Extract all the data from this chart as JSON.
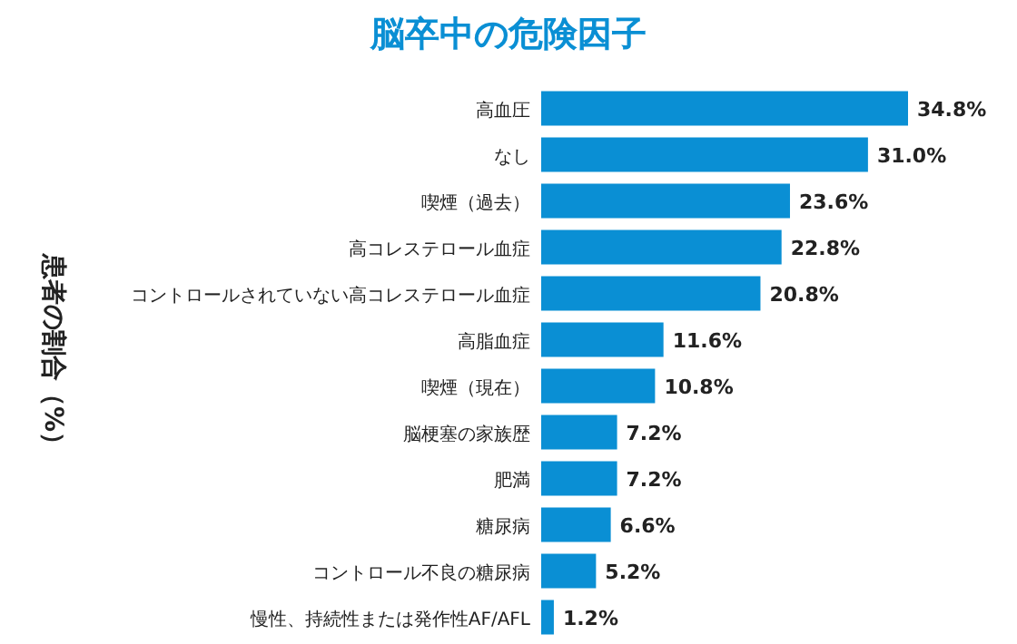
{
  "chart_data": {
    "type": "bar",
    "orientation": "horizontal",
    "title": "脳卒中の危険因子",
    "ylabel": "患者の割合（%）",
    "categories": [
      "高血圧",
      "なし",
      "喫煙（過去）",
      "高コレステロール血症",
      "コントロールされていない高コレステロール血症",
      "高脂血症",
      "喫煙（現在）",
      "脳梗塞の家族歴",
      "肥満",
      "糖尿病",
      "コントロール不良の糖尿病",
      "慢性、持続性または発作性AF/AFL"
    ],
    "values": [
      34.8,
      31.0,
      23.6,
      22.8,
      20.8,
      11.6,
      10.8,
      7.2,
      7.2,
      6.6,
      5.2,
      1.2
    ],
    "value_labels": [
      "34.8%",
      "31.0%",
      "23.6%",
      "22.8%",
      "20.8%",
      "11.6%",
      "10.8%",
      "7.2%",
      "7.2%",
      "6.6%",
      "5.2%",
      "1.2%"
    ],
    "color": "#0a8fd4"
  }
}
